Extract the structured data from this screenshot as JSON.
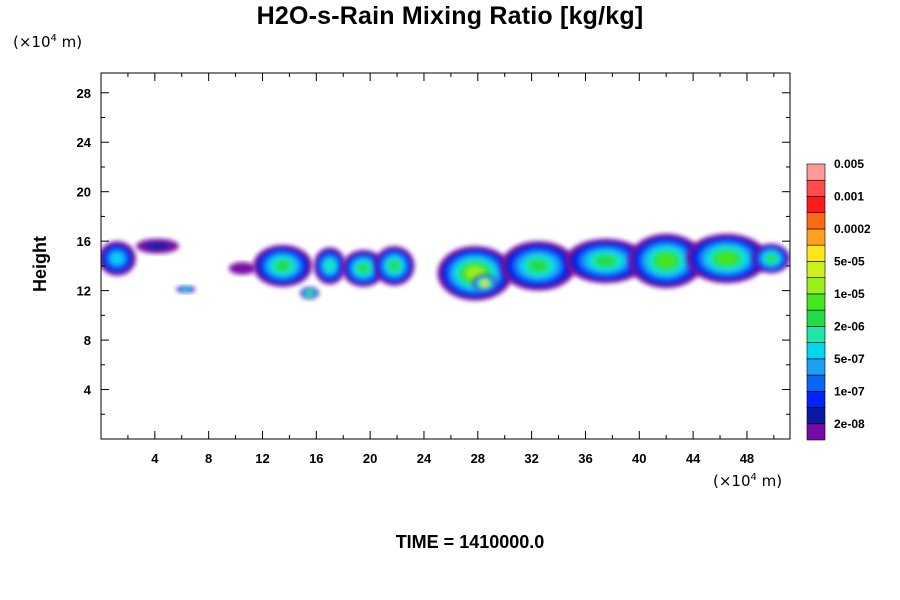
{
  "title": "H2O-s-Rain Mixing Ratio [kg/kg]",
  "y_unit": {
    "prefix": "(×10",
    "exp": "4",
    "suffix": " m)"
  },
  "x_unit": {
    "prefix": "(×10",
    "exp": "4",
    "suffix": " m)"
  },
  "time_label": "TIME = 1410000.0",
  "chart_data": {
    "type": "heatmap",
    "title": "H2O-s-Rain Mixing Ratio [kg/kg]",
    "xlabel": "",
    "ylabel": "Height",
    "xlim": [
      0,
      51.2
    ],
    "ylim": [
      0,
      29.6
    ],
    "x_ticks": [
      4,
      8,
      12,
      16,
      20,
      24,
      28,
      32,
      36,
      40,
      44,
      48
    ],
    "y_ticks": [
      4,
      8,
      12,
      16,
      20,
      24,
      28
    ],
    "colorbar": {
      "colors": [
        "#7a0aa5",
        "#0a1aa5",
        "#0022ff",
        "#0a66f5",
        "#1aa0f5",
        "#00d8f0",
        "#1ee6a8",
        "#22dd44",
        "#44e61e",
        "#99ee1e",
        "#ccf01a",
        "#ffe61a",
        "#ffa01e",
        "#ff6a10",
        "#ff1a1a",
        "#ff4d4d",
        "#ff9a9a"
      ],
      "labels": [
        "2e-08",
        "1e-07",
        "5e-07",
        "2e-06",
        "1e-05",
        "5e-05",
        "0.0002",
        "0.001",
        "0.005"
      ]
    },
    "regions": [
      {
        "x": 1.2,
        "y": 14.6,
        "rx": 1.4,
        "ry": 1.4,
        "level": 5
      },
      {
        "x": 4.2,
        "y": 15.6,
        "rx": 1.6,
        "ry": 0.6,
        "level": 1
      },
      {
        "x": 6.3,
        "y": 12.1,
        "rx": 0.7,
        "ry": 0.3,
        "level": 6
      },
      {
        "x": 10.5,
        "y": 13.8,
        "rx": 1.0,
        "ry": 0.5,
        "level": 0
      },
      {
        "x": 13.5,
        "y": 14.0,
        "rx": 2.2,
        "ry": 1.7,
        "level": 7
      },
      {
        "x": 15.5,
        "y": 11.8,
        "rx": 0.7,
        "ry": 0.5,
        "level": 8
      },
      {
        "x": 17.0,
        "y": 14.0,
        "rx": 1.2,
        "ry": 1.5,
        "level": 6
      },
      {
        "x": 19.5,
        "y": 13.8,
        "rx": 1.6,
        "ry": 1.5,
        "level": 7
      },
      {
        "x": 21.8,
        "y": 14.0,
        "rx": 1.5,
        "ry": 1.6,
        "level": 7
      },
      {
        "x": 27.8,
        "y": 13.4,
        "rx": 2.8,
        "ry": 2.2,
        "level": 9
      },
      {
        "x": 28.5,
        "y": 12.6,
        "rx": 0.9,
        "ry": 0.7,
        "level": 11
      },
      {
        "x": 32.5,
        "y": 14.0,
        "rx": 2.8,
        "ry": 2.0,
        "level": 7
      },
      {
        "x": 37.5,
        "y": 14.4,
        "rx": 3.0,
        "ry": 1.8,
        "level": 7
      },
      {
        "x": 42.0,
        "y": 14.4,
        "rx": 2.8,
        "ry": 2.2,
        "level": 8
      },
      {
        "x": 46.5,
        "y": 14.6,
        "rx": 3.0,
        "ry": 2.0,
        "level": 8
      },
      {
        "x": 49.8,
        "y": 14.6,
        "rx": 1.4,
        "ry": 1.2,
        "level": 7
      }
    ]
  }
}
